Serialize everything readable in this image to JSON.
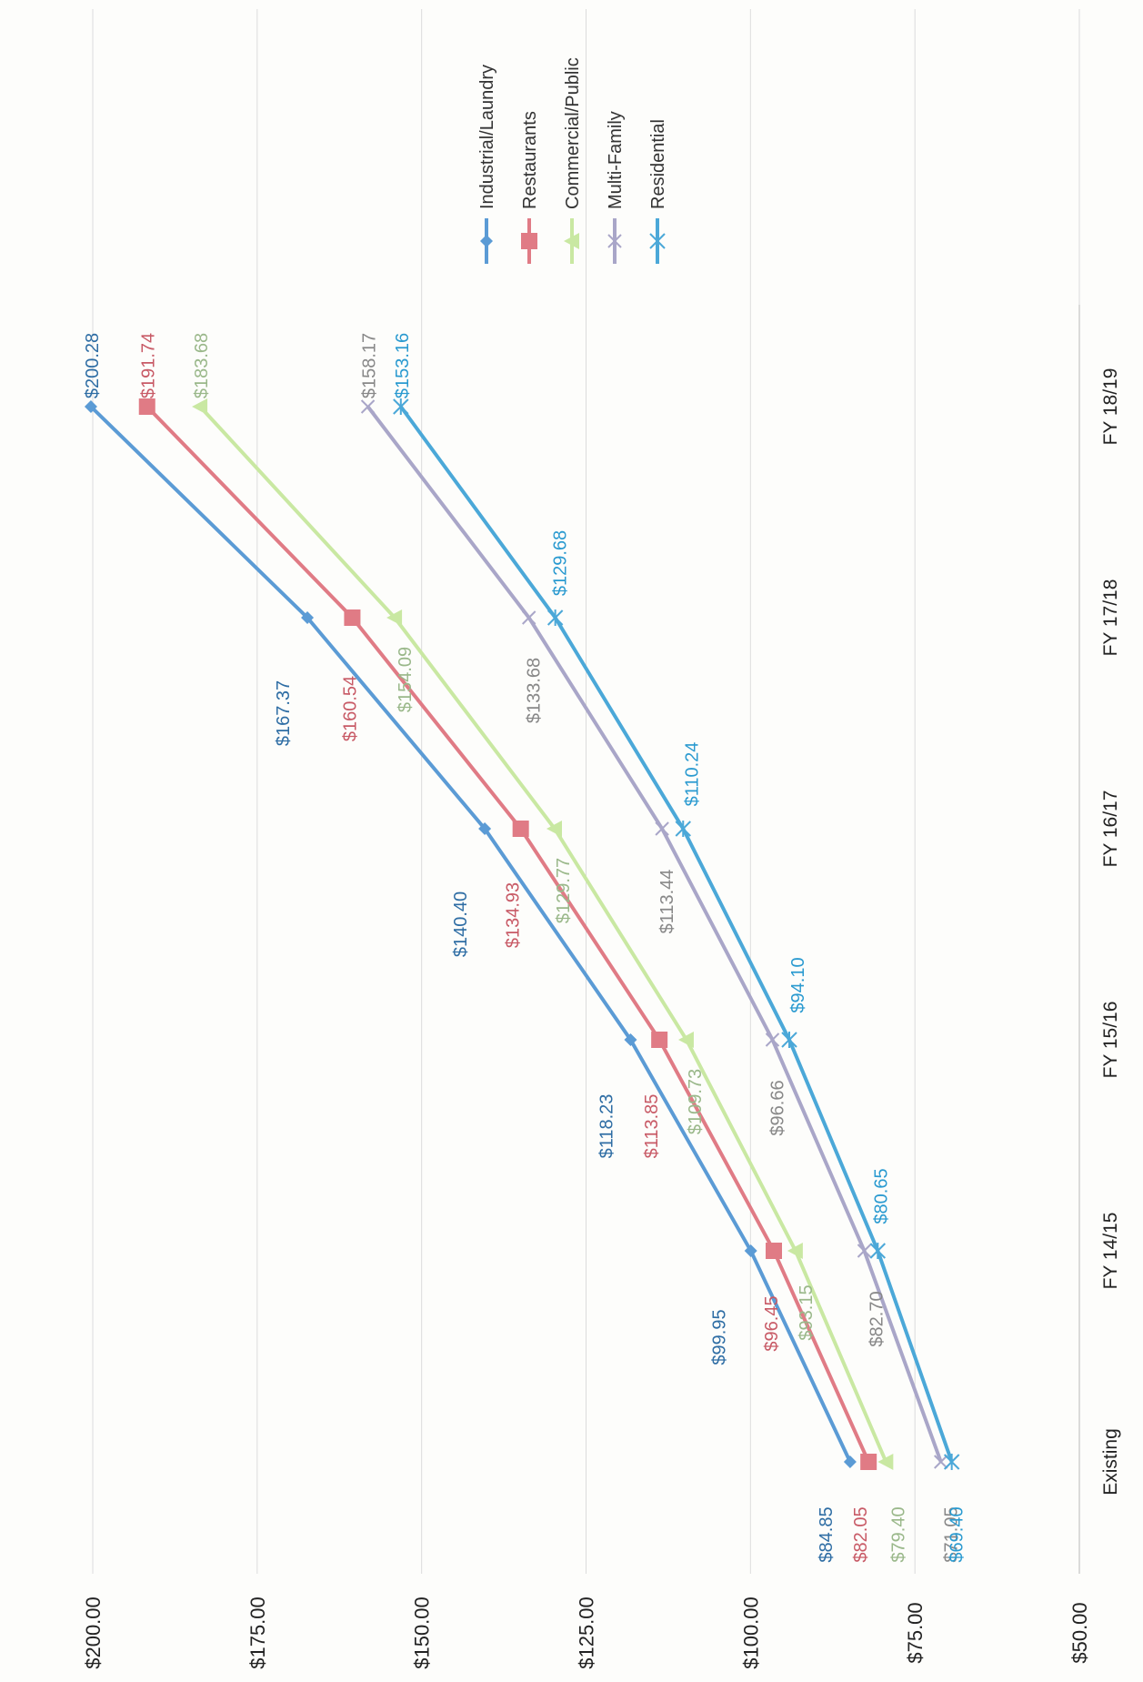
{
  "chart_data": {
    "type": "line",
    "title": "",
    "xlabel": "",
    "ylabel": "",
    "categories": [
      "Existing",
      "FY 14/15",
      "FY 15/16",
      "FY 16/17",
      "FY 17/18",
      "FY 18/19"
    ],
    "ylim": [
      50,
      200
    ],
    "yticks": [
      "$50.00",
      "$75.00",
      "$100.00",
      "$125.00",
      "$150.00",
      "$175.00",
      "$200.00"
    ],
    "grid": true,
    "legend_position": "right",
    "orientation": "rotated-90-clockwise",
    "series": [
      {
        "name": "Industrial/Laundry",
        "color": "#5b9bd5",
        "label_color": "#2e6da4",
        "marker": "diamond",
        "values": [
          84.85,
          99.95,
          118.23,
          140.4,
          167.37,
          200.28
        ],
        "labels": [
          "$84.85",
          "$99.95",
          "$118.23",
          "$140.40",
          "$167.37",
          "$200.28"
        ]
      },
      {
        "name": "Restaurants",
        "color": "#e07b85",
        "label_color": "#c85a66",
        "marker": "square",
        "values": [
          82.05,
          96.45,
          113.85,
          134.93,
          160.54,
          191.74
        ],
        "labels": [
          "$82.05",
          "$96.45",
          "$113.85",
          "$134.93",
          "$160.54",
          "$191.74"
        ]
      },
      {
        "name": "Commercial/Public",
        "color": "#c9e8a2",
        "label_color": "#9ab88a",
        "marker": "triangle",
        "values": [
          79.4,
          93.15,
          109.73,
          129.77,
          154.09,
          183.68
        ],
        "labels": [
          "$79.40",
          "$93.15",
          "$109.73",
          "$129.77",
          "$154.09",
          "$183.68"
        ]
      },
      {
        "name": "Multi-Family",
        "color": "#a9a6c8",
        "label_color": "#888888",
        "marker": "x",
        "values": [
          71.05,
          82.7,
          96.66,
          113.44,
          133.68,
          158.17
        ],
        "labels": [
          "$71.05",
          "$82.70",
          "$96.66",
          "$113.44",
          "$133.68",
          "$158.17"
        ]
      },
      {
        "name": "Residential",
        "color": "#4ba8d8",
        "label_color": "#2a9ad0",
        "marker": "star",
        "values": [
          69.4,
          80.65,
          94.1,
          110.24,
          129.68,
          153.16
        ],
        "labels": [
          "$69.40",
          "$80.65",
          "$94.10",
          "$110.24",
          "$129.68",
          "$153.16"
        ]
      }
    ]
  }
}
